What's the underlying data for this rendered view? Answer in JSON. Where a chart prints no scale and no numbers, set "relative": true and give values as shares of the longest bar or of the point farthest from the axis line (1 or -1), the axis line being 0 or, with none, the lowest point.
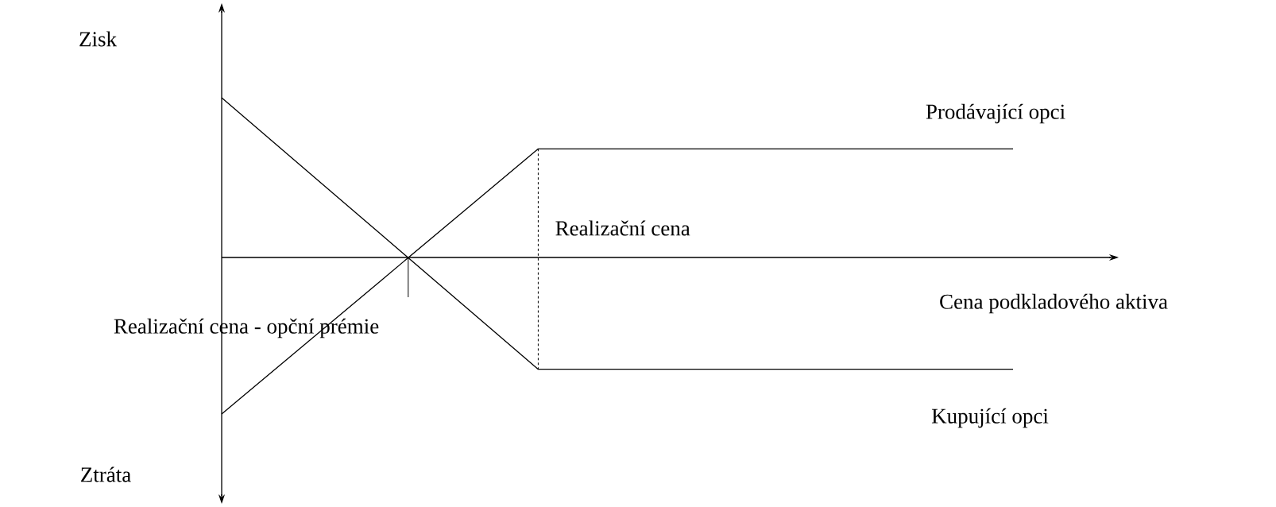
{
  "chart_data": {
    "type": "line",
    "relative": true,
    "xlabel": "Cena podkladového aktiva",
    "annotations": [
      "Zisk",
      "Ztráta",
      "Realizační cena",
      "Realizační cena - opční prémie"
    ],
    "categories": [
      null,
      null,
      null,
      null,
      null,
      null
    ],
    "series": [
      {
        "name": "Prodávající opci",
        "color": "#000000",
        "values": [
          -0.98,
          -0.15,
          0.68,
          0.68,
          0.68,
          0.68
        ]
      },
      {
        "name": "Kupující opci",
        "color": "#000000",
        "values": [
          1,
          0.15,
          -0.7,
          -0.7,
          -0.7,
          -0.7
        ]
      }
    ]
  }
}
